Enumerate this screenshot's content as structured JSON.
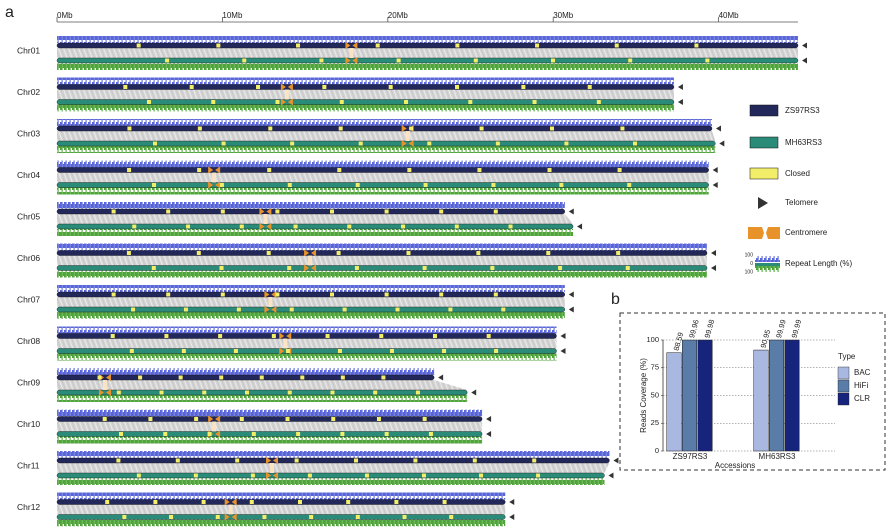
{
  "panel_a": {
    "label": "a",
    "xlim": [
      0,
      44.8
    ],
    "xticks": [
      {
        "value": 0,
        "label": "0Mb"
      },
      {
        "value": 10,
        "label": "10Mb"
      },
      {
        "value": 20,
        "label": "20Mb"
      },
      {
        "value": 30,
        "label": "30Mb"
      },
      {
        "value": 40,
        "label": "40Mb"
      }
    ],
    "chromosomes": [
      {
        "name": "Chr01",
        "lengths": [
          44.8,
          44.8
        ],
        "centromere": 17.8
      },
      {
        "name": "Chr02",
        "lengths": [
          37.3,
          37.3
        ],
        "centromere": 13.9
      },
      {
        "name": "Chr03",
        "lengths": [
          39.6,
          39.8
        ],
        "centromere": 21.2
      },
      {
        "name": "Chr04",
        "lengths": [
          39.4,
          39.4
        ],
        "centromere": 9.5
      },
      {
        "name": "Chr05",
        "lengths": [
          30.7,
          31.2
        ],
        "centromere": 12.6
      },
      {
        "name": "Chr06",
        "lengths": [
          39.3,
          39.3
        ],
        "centromere": 15.3
      },
      {
        "name": "Chr07",
        "lengths": [
          30.7,
          30.7
        ],
        "centromere": 12.9
      },
      {
        "name": "Chr08",
        "lengths": [
          30.2,
          30.2
        ],
        "centromere": 13.8
      },
      {
        "name": "Chr09",
        "lengths": [
          22.8,
          24.8
        ],
        "centromere": 2.9
      },
      {
        "name": "Chr10",
        "lengths": [
          25.7,
          25.7
        ],
        "centromere": 9.5
      },
      {
        "name": "Chr11",
        "lengths": [
          33.4,
          33.1
        ],
        "centromere": 13.0
      },
      {
        "name": "Chr12",
        "lengths": [
          27.1,
          27.1
        ],
        "centromere": 10.5
      }
    ],
    "legend": {
      "top_genome": {
        "label": "ZS97RS3",
        "color": "#23285a"
      },
      "bottom_genome": {
        "label": "MH63RS3",
        "color": "#2a8c78"
      },
      "closed": {
        "label": "Closed",
        "color": "#f3ee6a"
      },
      "telomere": {
        "label": "Telomere",
        "color": "#333333"
      },
      "centromere": {
        "label": "Centromere",
        "color": "#e8922a"
      },
      "repeat": {
        "label": "Repeat Length (%)",
        "ticks": [
          100,
          0,
          100
        ],
        "colors": [
          "#5865d8",
          "#4ea33a"
        ]
      }
    }
  },
  "chart_data": {
    "label": "b",
    "type": "bar",
    "ylabel": "Reads Coverage (%)",
    "xlabel": "Accessions",
    "legend_title": "Type",
    "categories": [
      "ZS97RS3",
      "MH63RS3"
    ],
    "series": [
      {
        "name": "BAC",
        "color": "#a8b8e0",
        "values": [
          88.59,
          90.95
        ]
      },
      {
        "name": "HiFi",
        "color": "#5a7ca8",
        "values": [
          99.96,
          99.99
        ]
      },
      {
        "name": "CLR",
        "color": "#17247c",
        "values": [
          99.98,
          99.99
        ]
      }
    ],
    "ylim": [
      0,
      100
    ],
    "yticks": [
      0,
      25,
      50,
      75,
      100
    ],
    "grid": true
  }
}
